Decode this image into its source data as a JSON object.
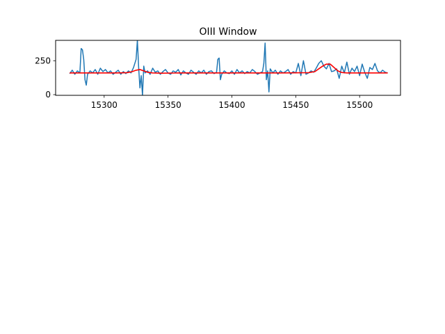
{
  "chart_data": {
    "type": "line",
    "title": "OIII Window",
    "xlabel": "",
    "ylabel": "",
    "xlim": [
      15262,
      15532
    ],
    "ylim": [
      -5,
      400
    ],
    "xticks": [
      15300,
      15350,
      15400,
      15450,
      15500
    ],
    "yticks": [
      0,
      250
    ],
    "grid": false,
    "colors": {
      "data": "#1f77b4",
      "model": "#ff0000"
    },
    "series": [
      {
        "role": "data",
        "x": [
          15273,
          15275,
          15277,
          15279,
          15281,
          15282,
          15283,
          15284,
          15285,
          15286,
          15287,
          15289,
          15291,
          15293,
          15295,
          15297,
          15299,
          15301,
          15303,
          15305,
          15307,
          15309,
          15311,
          15313,
          15315,
          15317,
          15319,
          15321,
          15323,
          15325,
          15326,
          15327,
          15328,
          15329,
          15330,
          15331,
          15332,
          15334,
          15336,
          15338,
          15340,
          15342,
          15344,
          15346,
          15348,
          15350,
          15352,
          15354,
          15356,
          15358,
          15360,
          15362,
          15364,
          15366,
          15368,
          15370,
          15372,
          15374,
          15376,
          15378,
          15380,
          15382,
          15384,
          15386,
          15388,
          15389,
          15390,
          15391,
          15392,
          15394,
          15396,
          15398,
          15400,
          15402,
          15404,
          15406,
          15408,
          15410,
          15412,
          15414,
          15416,
          15418,
          15420,
          15422,
          15424,
          15425,
          15426,
          15427,
          15428,
          15429,
          15430,
          15432,
          15434,
          15436,
          15438,
          15440,
          15442,
          15444,
          15446,
          15448,
          15450,
          15452,
          15454,
          15456,
          15458,
          15460,
          15462,
          15464,
          15466,
          15468,
          15470,
          15472,
          15474,
          15476,
          15478,
          15480,
          15482,
          15484,
          15486,
          15488,
          15490,
          15492,
          15494,
          15496,
          15498,
          15500,
          15502,
          15504,
          15506,
          15508,
          15510,
          15512,
          15514,
          15516,
          15518,
          15520,
          15522
        ],
        "y": [
          155,
          180,
          150,
          175,
          160,
          340,
          330,
          260,
          110,
          70,
          150,
          175,
          160,
          185,
          150,
          195,
          170,
          185,
          160,
          175,
          150,
          165,
          180,
          150,
          170,
          155,
          175,
          160,
          200,
          260,
          400,
          200,
          50,
          140,
          -5,
          210,
          160,
          175,
          150,
          195,
          165,
          175,
          150,
          170,
          185,
          160,
          150,
          175,
          165,
          185,
          145,
          175,
          160,
          150,
          180,
          165,
          150,
          175,
          160,
          180,
          150,
          170,
          175,
          155,
          165,
          260,
          270,
          110,
          150,
          175,
          160,
          155,
          175,
          150,
          185,
          160,
          175,
          155,
          170,
          160,
          185,
          170,
          150,
          160,
          170,
          230,
          380,
          110,
          175,
          20,
          190,
          160,
          180,
          150,
          175,
          160,
          170,
          185,
          150,
          170,
          160,
          230,
          140,
          250,
          150,
          160,
          175,
          165,
          195,
          230,
          250,
          210,
          190,
          230,
          170,
          175,
          190,
          120,
          210,
          160,
          240,
          150,
          195,
          170,
          210,
          140,
          225,
          165,
          120,
          200,
          185,
          230,
          175,
          160,
          180,
          165,
          160
        ]
      },
      {
        "role": "model",
        "x": [
          15273,
          15310,
          15318,
          15322,
          15325,
          15328,
          15331,
          15334,
          15338,
          15345,
          15360,
          15400,
          15440,
          15460,
          15465,
          15468,
          15471,
          15474,
          15477,
          15480,
          15483,
          15486,
          15490,
          15500,
          15522
        ],
        "y": [
          160,
          160,
          162,
          170,
          180,
          185,
          175,
          165,
          160,
          158,
          160,
          160,
          160,
          162,
          170,
          190,
          210,
          225,
          225,
          200,
          175,
          163,
          160,
          160,
          160
        ]
      }
    ]
  }
}
